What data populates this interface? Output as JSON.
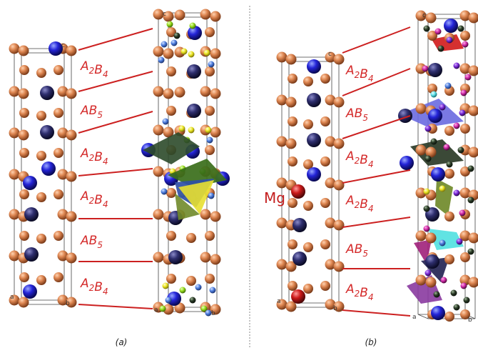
{
  "panels": [
    {
      "id": "a",
      "caption": "(a)",
      "layers": [
        "A2B4",
        "AB5",
        "A2B4",
        "A2B4",
        "AB5",
        "A2B4"
      ],
      "corner_labels": [
        "c",
        "a",
        "b",
        "c",
        "a",
        "b"
      ]
    },
    {
      "id": "b",
      "caption": "(b)",
      "dopant": "Mg",
      "layers": [
        "A2B4",
        "AB5",
        "A2B4",
        "A2B4",
        "AB5",
        "A2B4"
      ],
      "corner_labels": [
        "c",
        "a",
        "b",
        "c",
        "a",
        "b"
      ]
    }
  ],
  "colors": {
    "host_atom": "#d2784a",
    "a_site": "#2222cc",
    "a_site_dark": "#2a2a66",
    "mg": "#cc1a1a",
    "h_yellow": "#f2ea22",
    "h_green": "#9be21e",
    "h_blue": "#4f7fe0",
    "poly_green": "#3a6e1a",
    "poly_blue": "#2f4fa8",
    "poly_yellow": "#e8e030",
    "poly_violet": "#7070e0",
    "poly_cyan": "#50e0e0",
    "poly_magenta": "#a0207a",
    "poly_olive": "#708a2a",
    "line_red": "#cc2020",
    "divider": "#888888"
  }
}
